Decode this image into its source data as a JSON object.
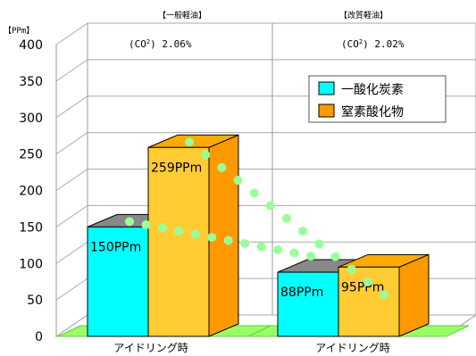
{
  "chart_data": {
    "type": "bar",
    "unit_label": "【PPm】",
    "yticks": [
      "400",
      "350",
      "300",
      "250",
      "200",
      "150",
      "100",
      "50",
      "0"
    ],
    "ylim": [
      0,
      400
    ],
    "groups": [
      {
        "header": "【一般軽油】",
        "co2_text": "(CO",
        "co2_sup": "2",
        "co2_value": ")  2.06%",
        "category": "アイドリング時"
      },
      {
        "header": "【改質軽油】",
        "co2_text": "(CO",
        "co2_sup": "2",
        "co2_value": ")  2.02%",
        "category": "アイドリング時"
      }
    ],
    "series": [
      {
        "name": "一酸化炭素",
        "values": [
          150,
          88
        ],
        "labels": [
          "150PPm",
          "88PPm"
        ],
        "color": "#00ffff",
        "side_color": "#808080"
      },
      {
        "name": "窒素酸化物",
        "values": [
          259,
          95
        ],
        "labels": [
          "259PPm",
          "95PPm"
        ],
        "color": "#ffcc33",
        "side_color": "#ff9900"
      }
    ],
    "grid": true,
    "legend_position": "top-right",
    "floor_color": "#99ff66",
    "trend_dot_color": "#99ff99",
    "trend_lines": [
      {
        "from": 150,
        "to": 88
      },
      {
        "from": 259,
        "to": 95
      }
    ]
  }
}
